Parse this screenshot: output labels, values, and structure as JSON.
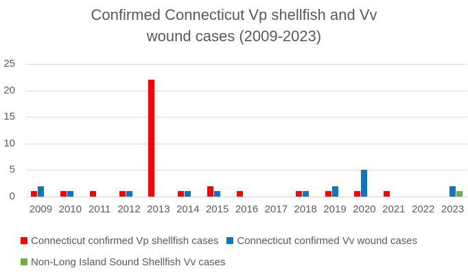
{
  "chart_data": {
    "type": "bar",
    "title": "Confirmed Connecticut Vp shellfish and Vv wound cases (2009-2023)",
    "xlabel": "",
    "ylabel": "",
    "categories": [
      "2009",
      "2010",
      "2011",
      "2012",
      "2013",
      "2014",
      "2015",
      "2016",
      "2017",
      "2018",
      "2019",
      "2020",
      "2021",
      "2022",
      "2023"
    ],
    "series": [
      {
        "name": "Connecticut confirmed Vp shellfish cases",
        "color": "#ff0000",
        "values": [
          1,
          1,
          1,
          1,
          22,
          1,
          2,
          1,
          0,
          1,
          1,
          1,
          1,
          0,
          0
        ]
      },
      {
        "name": "Connecticut confirmed Vv wound cases",
        "color": "#0f76bc",
        "values": [
          2,
          1,
          0,
          1,
          0,
          1,
          1,
          0,
          0,
          1,
          2,
          5,
          0,
          0,
          2
        ]
      },
      {
        "name": "Non-Long Island Sound Shellfish Vv cases",
        "color": "#70ad47",
        "values": [
          0,
          0,
          0,
          0,
          0,
          0,
          0,
          0,
          0,
          0,
          0,
          0,
          0,
          0,
          1
        ]
      }
    ],
    "ylim": [
      0,
      25
    ],
    "yticks": [
      0,
      5,
      10,
      15,
      20,
      25
    ],
    "grid": true,
    "legend_position": "bottom",
    "legend_rows": [
      [
        0,
        1
      ],
      [
        2
      ]
    ]
  },
  "colors": {
    "text": "#595959",
    "gridline": "#d9d9d9",
    "background": "#ffffff"
  }
}
